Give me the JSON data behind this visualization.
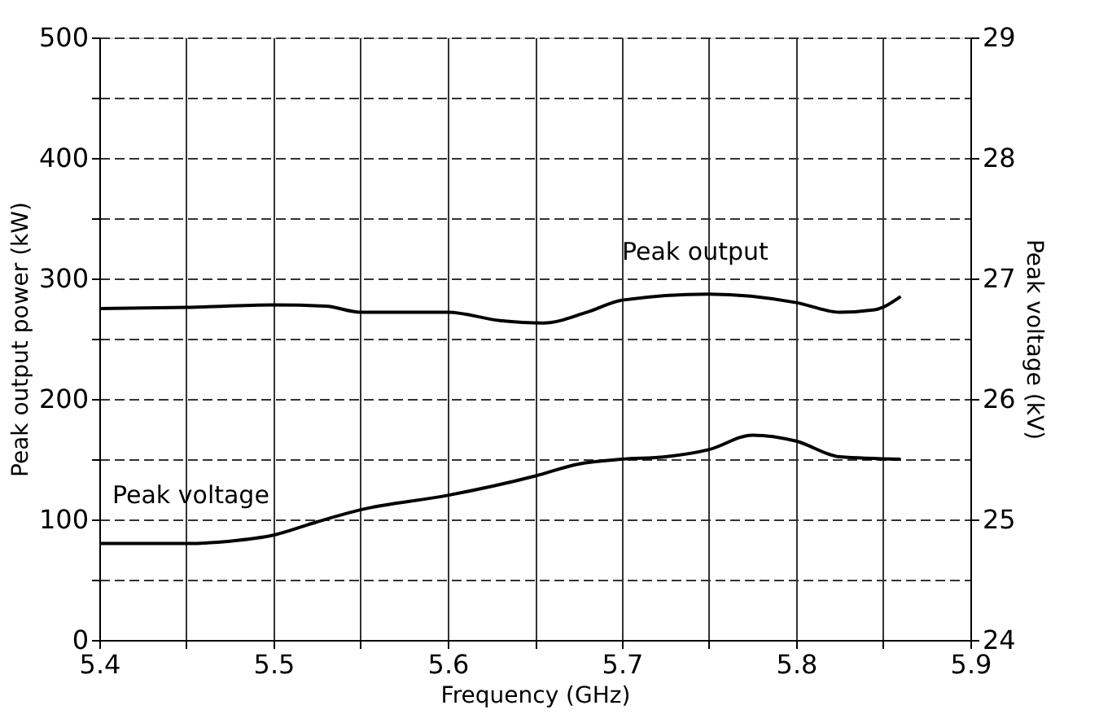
{
  "chart_data": {
    "type": "line",
    "xlabel": "Frequency (GHz)",
    "ylabel": "Peak output power (kW)",
    "y2label": "Peak voltage (kV)",
    "xlim": [
      5.4,
      5.9
    ],
    "xticks": [
      5.4,
      {
        "value": 5.45,
        "label": null
      },
      5.5,
      {
        "value": 5.55,
        "label": null
      },
      5.6,
      {
        "value": 5.65,
        "label": null
      },
      5.7,
      {
        "value": 5.75,
        "label": null
      },
      5.8,
      {
        "value": 5.85,
        "label": null
      },
      5.9
    ],
    "ylim": [
      0,
      500
    ],
    "yticks": [
      0,
      {
        "value": 50,
        "label": null
      },
      100,
      {
        "value": 150,
        "label": null
      },
      200,
      {
        "value": 250,
        "label": null
      },
      300,
      {
        "value": 350,
        "label": null
      },
      400,
      {
        "value": 450,
        "label": null
      },
      500
    ],
    "y2lim": [
      24,
      29
    ],
    "y2ticks": [
      24,
      25,
      26,
      27,
      28,
      29
    ],
    "grid": true,
    "marker": "none",
    "line_style": "solid",
    "series": [
      {
        "name": "Peak output",
        "color": "#000000",
        "x": [
          5.4,
          5.45,
          5.5,
          5.53,
          5.55,
          5.6,
          5.63,
          5.655,
          5.68,
          5.7,
          5.75,
          5.8,
          5.825,
          5.845,
          5.86
        ],
        "values": [
          275,
          276,
          278,
          277,
          272,
          272,
          265,
          263,
          272,
          282,
          287,
          280,
          272,
          274,
          285
        ]
      },
      {
        "name": "Peak voltage",
        "color": "#000000",
        "axis": "y2",
        "x": [
          5.4,
          5.45,
          5.475,
          5.5,
          5.525,
          5.55,
          5.6,
          5.65,
          5.675,
          5.7,
          5.725,
          5.75,
          5.775,
          5.8,
          5.825,
          5.86
        ],
        "values": [
          24.8,
          24.8,
          24.82,
          24.87,
          24.98,
          25.08,
          25.2,
          25.36,
          25.46,
          25.5,
          25.52,
          25.58,
          25.7,
          25.65,
          25.52,
          25.5
        ]
      }
    ]
  }
}
